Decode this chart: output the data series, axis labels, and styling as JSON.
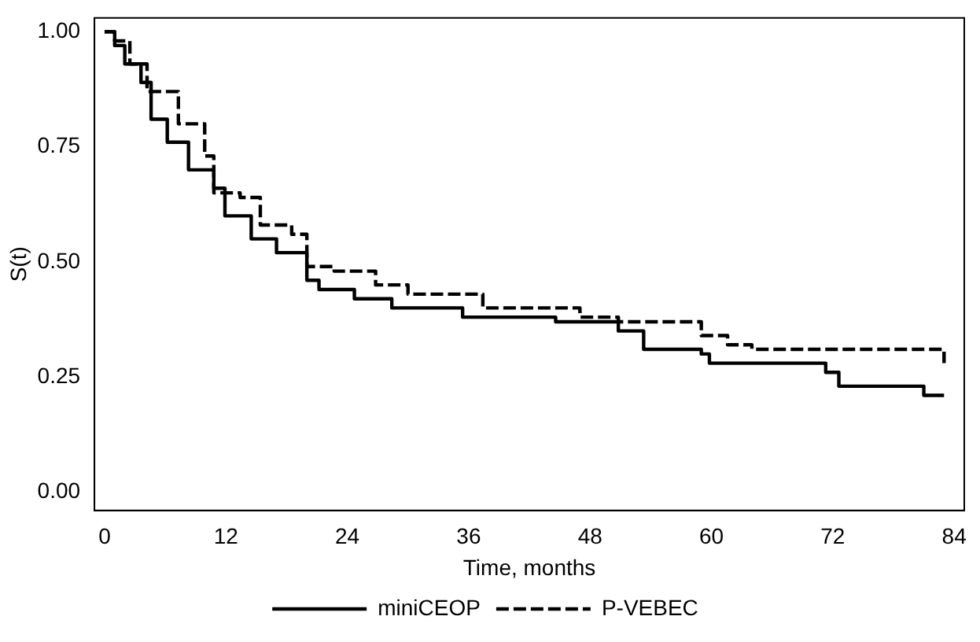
{
  "chart_data": {
    "type": "step",
    "xlabel": "Time, months",
    "ylabel": "S(t)",
    "xlim": [
      -1,
      85
    ],
    "xticks": [
      0,
      12,
      24,
      36,
      48,
      60,
      72,
      84
    ],
    "ylim": [
      -0.04,
      1.03
    ],
    "yticks": [
      {
        "value": 0,
        "label": "0.00"
      },
      {
        "value": 0.25,
        "label": "0.25"
      },
      {
        "value": 0.5,
        "label": "0.50"
      },
      {
        "value": 0.75,
        "label": "0.75"
      },
      {
        "value": 1,
        "label": "1.00"
      }
    ],
    "grid": false,
    "legend": "bottom",
    "marker": "none",
    "series": [
      {
        "name": "miniCEOP",
        "color": "#000000",
        "line_style": "solid",
        "x": [
          0,
          1,
          2,
          3.6,
          4.6,
          6.2,
          8.3,
          10.8,
          11.9,
          14.5,
          17,
          20,
          21.2,
          24.7,
          28.4,
          35.4,
          44.6,
          50.8,
          53.3,
          59,
          59.8,
          67.9,
          71.3,
          72.6,
          81,
          83
        ],
        "values": [
          1,
          0.97,
          0.93,
          0.89,
          0.81,
          0.76,
          0.7,
          0.66,
          0.6,
          0.55,
          0.52,
          0.46,
          0.44,
          0.42,
          0.4,
          0.38,
          0.37,
          0.35,
          0.31,
          0.3,
          0.28,
          0.28,
          0.26,
          0.23,
          0.21,
          0.21
        ]
      },
      {
        "name": "P-VEBEC",
        "color": "#000000",
        "line_style": "dashed",
        "x": [
          0,
          1,
          2.5,
          4.2,
          7.3,
          9.9,
          10.8,
          13.4,
          15.4,
          18.5,
          20,
          22.7,
          26.8,
          30,
          37.4,
          47,
          50.8,
          59,
          61.6,
          64,
          83
        ],
        "values": [
          1,
          0.98,
          0.93,
          0.87,
          0.8,
          0.73,
          0.65,
          0.64,
          0.58,
          0.56,
          0.49,
          0.48,
          0.45,
          0.43,
          0.4,
          0.38,
          0.37,
          0.34,
          0.32,
          0.31,
          0.28
        ]
      }
    ]
  }
}
